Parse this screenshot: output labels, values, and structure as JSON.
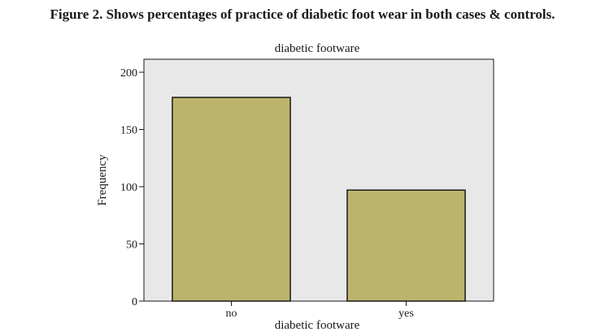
{
  "figure": {
    "caption": "Figure 2. Shows percentages of practice of diabetic foot wear in both cases & controls."
  },
  "chart_data": {
    "type": "bar",
    "title": "diabetic footware",
    "xlabel": "diabetic footware",
    "ylabel": "Frequency",
    "categories": [
      "no",
      "yes"
    ],
    "values": [
      178,
      97
    ],
    "ylim": [
      0,
      200
    ],
    "yticks": [
      0,
      50,
      100,
      150,
      200
    ],
    "grid": false,
    "colors": {
      "plot_background": "#e8e8e8",
      "bar_fill": "#bcb46a",
      "bar_stroke": "#1a1a1a"
    }
  }
}
